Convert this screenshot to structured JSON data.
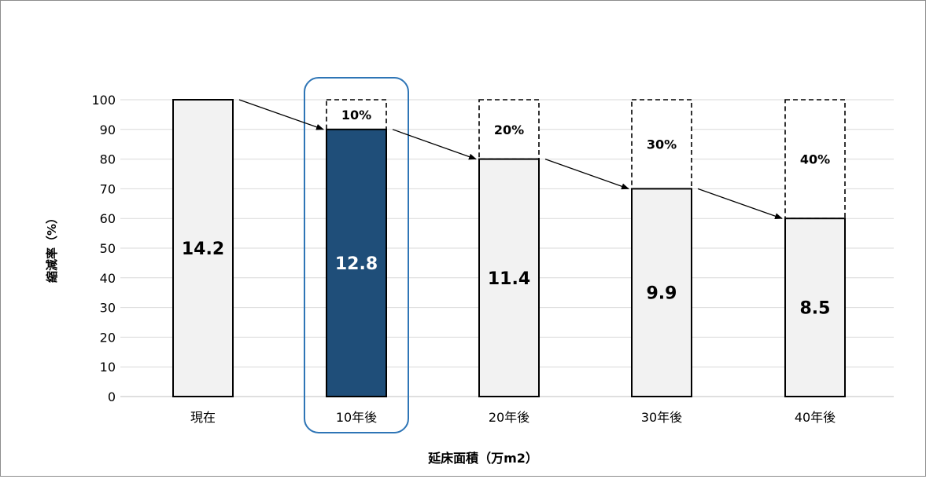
{
  "chart_data": {
    "type": "bar",
    "categories": [
      "現在",
      "10年後",
      "20年後",
      "30年後",
      "40年後"
    ],
    "values": [
      100,
      90,
      80,
      70,
      60
    ],
    "bar_labels": [
      "14.2",
      "12.8",
      "11.4",
      "9.9",
      "8.5"
    ],
    "reduction_values": [
      0,
      10,
      20,
      30,
      40
    ],
    "reduction_labels": [
      "",
      "10%",
      "20%",
      "30%",
      "40%"
    ],
    "highlighted_category": "10年後",
    "ylabel": "縮減率（%）",
    "xlabel": "延床面積（万m2）",
    "ylim": [
      0,
      100
    ],
    "yticks": [
      0,
      10,
      20,
      30,
      40,
      50,
      60,
      70,
      80,
      90,
      100
    ],
    "grid": true,
    "colors": {
      "bar_fill": "#f2f2f2",
      "highlight_fill": "#1f4e79",
      "highlight_box": "#2e75b6",
      "bar_outline": "#000000",
      "gridline": "#d9d9d9"
    }
  }
}
